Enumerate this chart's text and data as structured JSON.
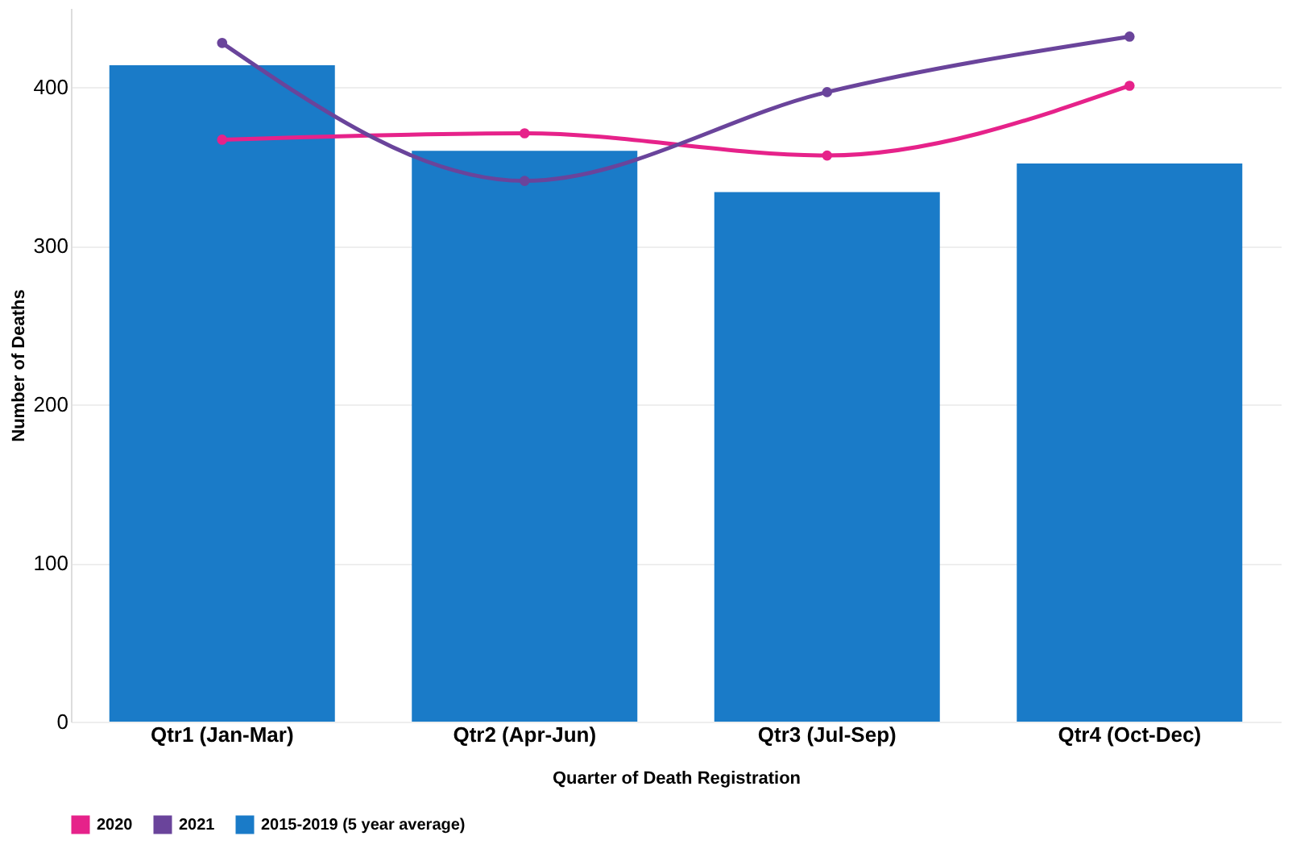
{
  "chart_data": {
    "type": "bar",
    "xlabel": "Quarter of Death Registration",
    "ylabel": "Number of Deaths",
    "categories": [
      "Qtr1 (Jan-Mar)",
      "Qtr2 (Apr-Jun)",
      "Qtr3 (Jul-Sep)",
      "Qtr4 (Oct-Dec)"
    ],
    "series": [
      {
        "name": "2020",
        "type": "line",
        "color": "#e6228a",
        "values": [
          367,
          371,
          357,
          401
        ]
      },
      {
        "name": "2021",
        "type": "line",
        "color": "#6a449b",
        "values": [
          428,
          341,
          397,
          432
        ]
      },
      {
        "name": "2015-2019 (5 year average)",
        "color": "#1a7bc8",
        "values": [
          414,
          360,
          334,
          352
        ]
      }
    ],
    "ylim": [
      0,
      450
    ],
    "yticks": [
      0,
      100,
      200,
      300,
      400
    ],
    "grid": "y",
    "legend": "bottom",
    "marker": "circle",
    "line_style": "solid"
  }
}
